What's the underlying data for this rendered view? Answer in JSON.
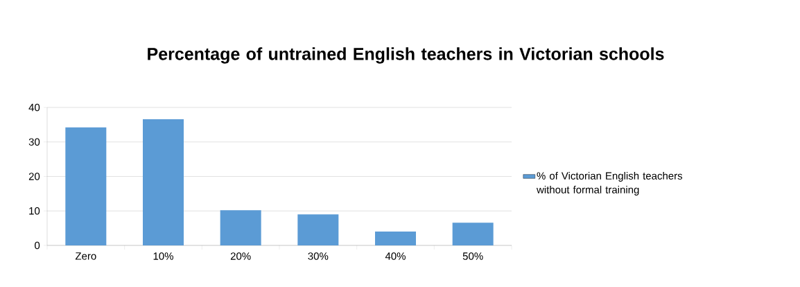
{
  "chart_data": {
    "type": "bar",
    "title": "Percentage of untrained English teachers in Victorian schools",
    "categories": [
      "Zero",
      "10%",
      "20%",
      "30%",
      "40%",
      "50%"
    ],
    "series": [
      {
        "name": "% of Victorian English teachers without formal training",
        "color": "#5b9bd5",
        "values": [
          34.2,
          36.6,
          10.2,
          9,
          4,
          6.6
        ]
      }
    ],
    "ylim": [
      0,
      40
    ],
    "yticks": [
      0,
      10,
      20,
      30,
      40
    ],
    "grid": "y",
    "legend": "right"
  }
}
